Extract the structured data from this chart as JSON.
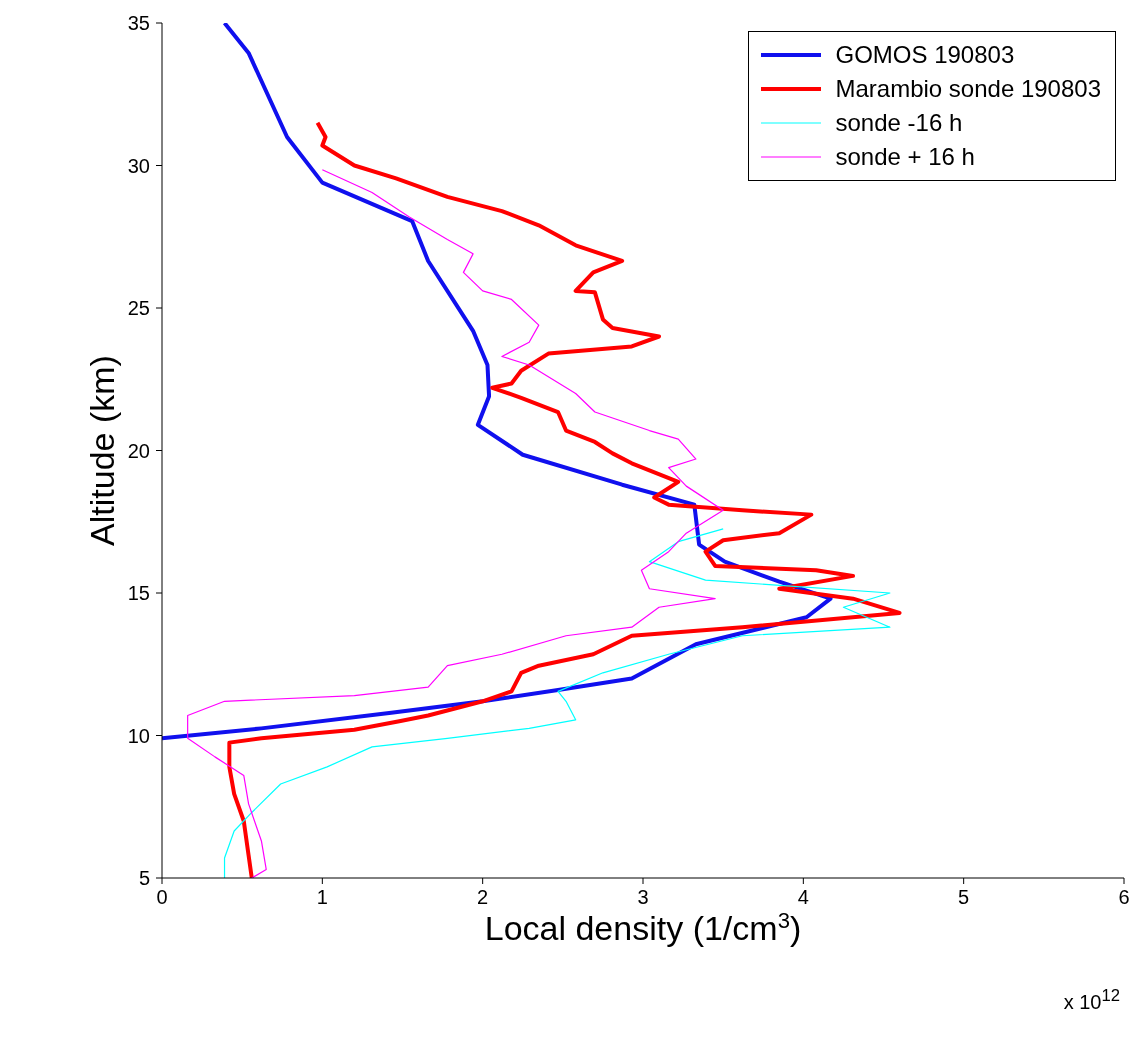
{
  "chart_data": {
    "type": "line",
    "xlabel": "Local density (1/cm$^{3}$)",
    "ylabel": "Altitude (km)",
    "annotations": [
      "x 10$^{12}$"
    ],
    "xlim": [
      0,
      6
    ],
    "xticks": [
      0,
      1,
      2,
      3,
      4,
      5,
      6
    ],
    "ylim": [
      5,
      35
    ],
    "yticks": [
      5,
      10,
      15,
      20,
      25,
      30,
      35
    ],
    "grid": false,
    "legend": "top right",
    "line_style": "solid",
    "series": [
      {
        "name": "GOMOS 190803",
        "color": "#1010ee",
        "x": [
          0.39,
          0.54,
          0.78,
          1.0,
          1.56,
          1.66,
          1.94,
          2.03,
          2.04,
          1.97,
          2.25,
          2.87,
          3.32,
          3.35,
          3.51,
          3.85,
          4.17,
          4.02,
          3.33,
          2.93,
          2.47,
          2.0,
          1.43,
          0.62,
          0
        ],
        "values": [
          35,
          33.95,
          31.0,
          29.4,
          28.05,
          26.65,
          24.2,
          23.0,
          21.9,
          20.9,
          19.85,
          18.8,
          18.1,
          16.7,
          16.1,
          15.4,
          14.8,
          14.15,
          13.2,
          12.0,
          11.6,
          11.2,
          10.8,
          10.25,
          9.9
        ]
      },
      {
        "name": "Marambio sonde 190803",
        "color": "#ff0000",
        "x": [
          0.97,
          1.02,
          1.0,
          1.2,
          1.46,
          1.78,
          2.12,
          2.35,
          2.58,
          2.87,
          2.69,
          2.58,
          2.7,
          2.75,
          2.81,
          3.1,
          2.93,
          2.41,
          2.24,
          2.18,
          2.06,
          2.24,
          2.47,
          2.52,
          2.7,
          2.81,
          2.93,
          3.22,
          3.07,
          3.16,
          3.62,
          4.05,
          3.85,
          3.5,
          3.39,
          3.45,
          4.08,
          4.31,
          3.85,
          4.31,
          4.6,
          3.62,
          2.93,
          2.69,
          2.35,
          2.24,
          2.18,
          2.0,
          1.66,
          1.48,
          1.2,
          0.62,
          0.42,
          0.42,
          0.45,
          0.51,
          0.54,
          0.56
        ],
        "values": [
          31.5,
          31.0,
          30.7,
          30.0,
          29.55,
          28.9,
          28.4,
          27.9,
          27.2,
          26.65,
          26.25,
          25.6,
          25.55,
          24.6,
          24.3,
          24.0,
          23.65,
          23.4,
          22.8,
          22.35,
          22.2,
          21.85,
          21.35,
          20.7,
          20.3,
          19.9,
          19.55,
          18.9,
          18.35,
          18.1,
          17.9,
          17.75,
          17.1,
          16.85,
          16.45,
          15.95,
          15.8,
          15.6,
          15.15,
          14.8,
          14.3,
          13.8,
          13.5,
          12.85,
          12.45,
          12.2,
          11.55,
          11.2,
          10.7,
          10.5,
          10.2,
          9.9,
          9.75,
          8.9,
          7.95,
          7.0,
          5.8,
          5.0
        ]
      },
      {
        "name": "sonde -16 h",
        "color": "#00ffff",
        "x": [
          3.5,
          3.22,
          3.04,
          3.39,
          4.54,
          4.25,
          4.54,
          3.62,
          3.16,
          2.75,
          2.47,
          2.52,
          2.58,
          2.29,
          1.78,
          1.31,
          1.03,
          0.74,
          0.56,
          0.45,
          0.39,
          0.39
        ],
        "values": [
          17.25,
          16.8,
          16.1,
          15.45,
          15.0,
          14.5,
          13.8,
          13.5,
          12.85,
          12.2,
          11.55,
          11.2,
          10.55,
          10.25,
          9.9,
          9.6,
          8.9,
          8.3,
          7.3,
          6.65,
          5.7,
          5.0
        ]
      },
      {
        "name": "sonde + 16 h",
        "color": "#ff00ff",
        "x": [
          1.0,
          1.31,
          1.54,
          1.78,
          1.94,
          1.88,
          2.0,
          2.18,
          2.35,
          2.29,
          2.12,
          2.29,
          2.58,
          2.7,
          3.04,
          3.22,
          3.33,
          3.16,
          3.27,
          3.5,
          3.27,
          3.16,
          2.99,
          3.04,
          3.45,
          3.1,
          2.93,
          2.52,
          2.12,
          1.78,
          1.66,
          1.2,
          0.39,
          0.16,
          0.16,
          0.33,
          0.51,
          0.54,
          0.62,
          0.65,
          0.56
        ],
        "values": [
          29.85,
          29.05,
          28.2,
          27.4,
          26.9,
          26.25,
          25.6,
          25.3,
          24.4,
          23.8,
          23.3,
          23.0,
          22.0,
          21.35,
          20.7,
          20.4,
          19.7,
          19.4,
          18.75,
          17.9,
          17.1,
          16.45,
          15.8,
          15.15,
          14.8,
          14.5,
          13.8,
          13.5,
          12.85,
          12.45,
          11.7,
          11.4,
          11.2,
          10.7,
          9.9,
          9.25,
          8.6,
          7.6,
          6.3,
          5.3,
          5.0
        ]
      }
    ]
  }
}
